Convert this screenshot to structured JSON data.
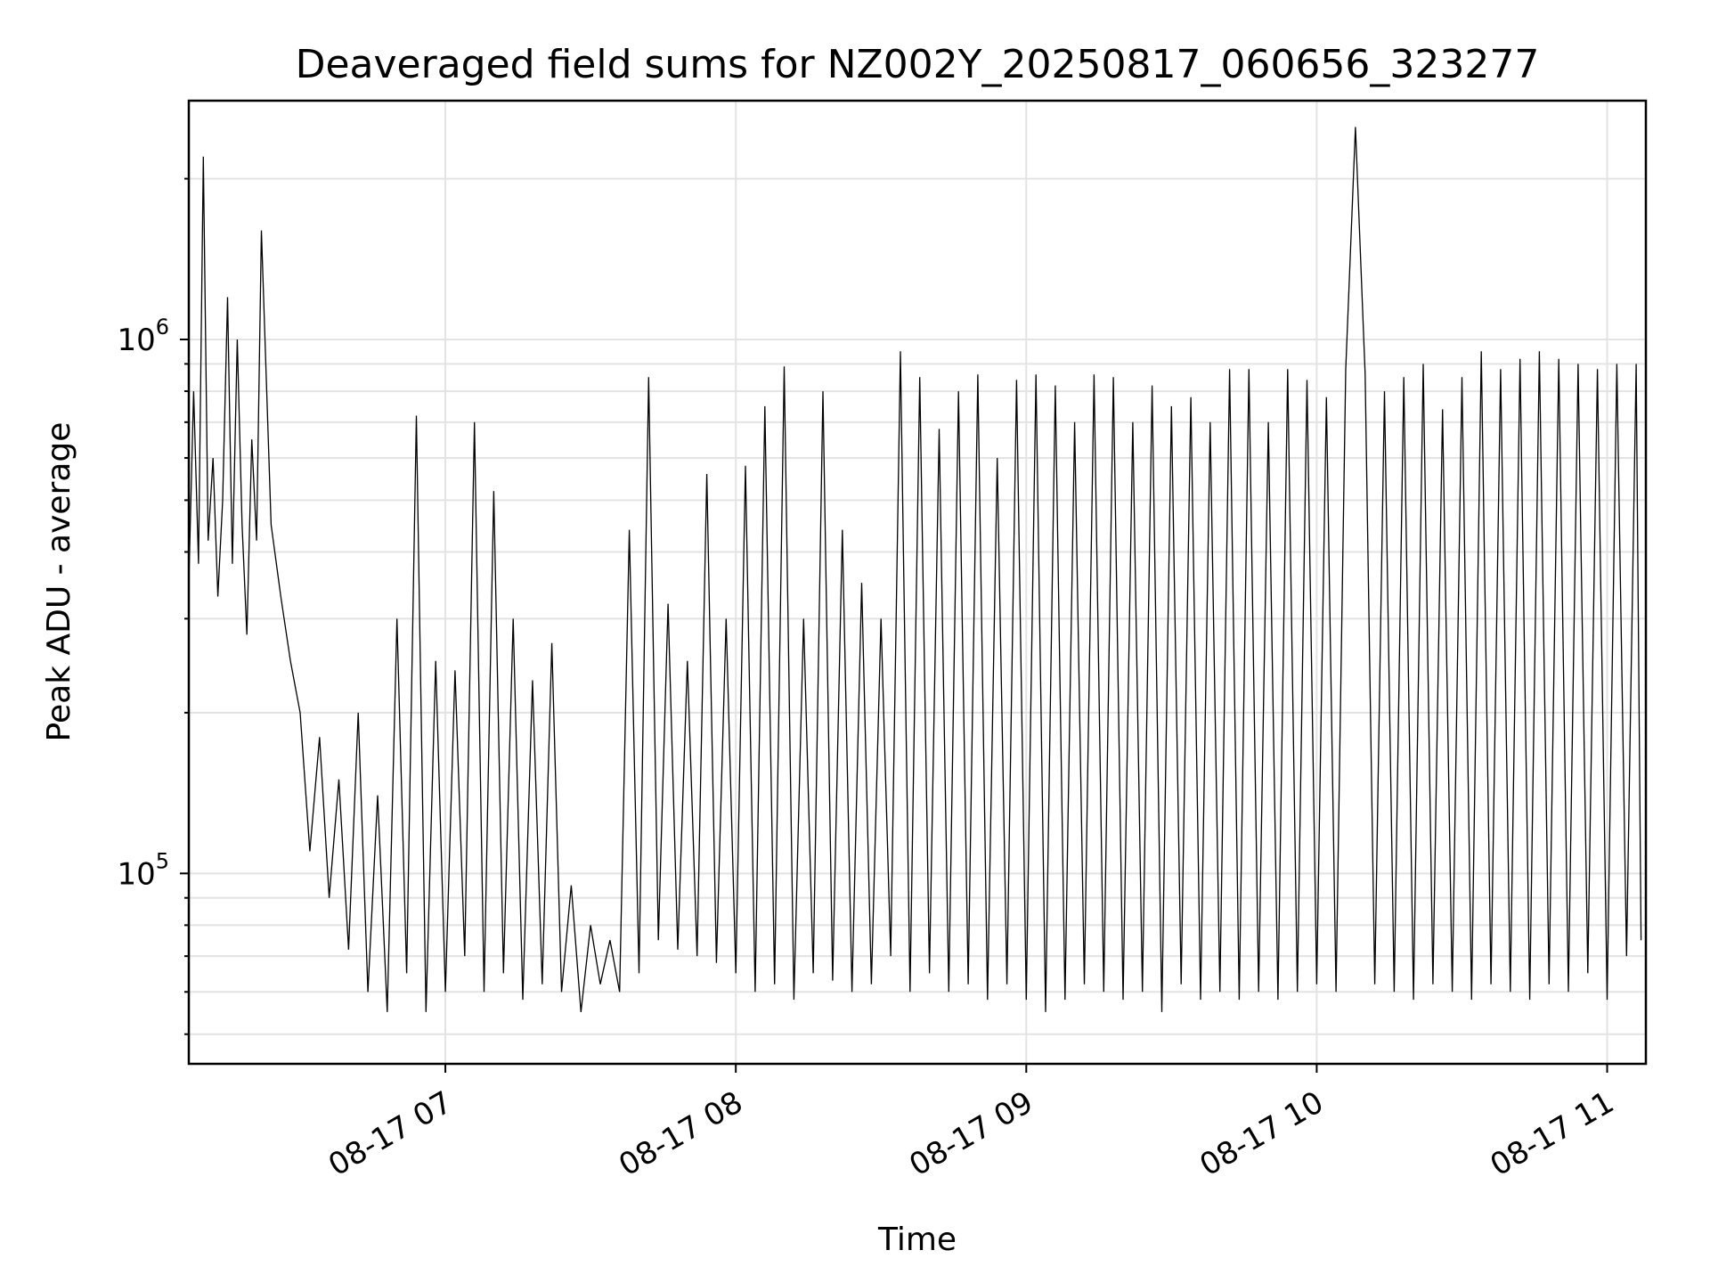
{
  "chart_data": {
    "type": "line",
    "title": "Deaveraged field sums for NZ002Y_20250817_060656_323277",
    "xlabel": "Time",
    "ylabel": "Peak ADU - average",
    "yscale": "log",
    "ylim": [
      44000,
      2800000
    ],
    "xlim": [
      "2025-08-17 06:07:00",
      "2025-08-17 11:08:00"
    ],
    "x_ticks": [
      {
        "value": "2025-08-17 07:00",
        "label": "08-17 07"
      },
      {
        "value": "2025-08-17 08:00",
        "label": "08-17 08"
      },
      {
        "value": "2025-08-17 09:00",
        "label": "08-17 09"
      },
      {
        "value": "2025-08-17 10:00",
        "label": "08-17 10"
      },
      {
        "value": "2025-08-17 11:00",
        "label": "08-17 11"
      }
    ],
    "y_major_ticks": [
      {
        "value": 100000,
        "base": "10",
        "exp": "5"
      },
      {
        "value": 1000000,
        "base": "10",
        "exp": "6"
      }
    ],
    "grid": true,
    "line_color": "#000000",
    "series": [
      {
        "x": [
          "2025-08-17 06:07",
          "2025-08-17 06:08",
          "2025-08-17 06:09",
          "2025-08-17 06:10",
          "2025-08-17 06:11",
          "2025-08-17 06:12",
          "2025-08-17 06:13",
          "2025-08-17 06:14",
          "2025-08-17 06:15",
          "2025-08-17 06:16",
          "2025-08-17 06:17",
          "2025-08-17 06:18",
          "2025-08-17 06:19",
          "2025-08-17 06:20",
          "2025-08-17 06:21",
          "2025-08-17 06:22",
          "2025-08-17 06:24",
          "2025-08-17 06:26",
          "2025-08-17 06:28",
          "2025-08-17 06:30",
          "2025-08-17 06:32",
          "2025-08-17 06:34",
          "2025-08-17 06:36",
          "2025-08-17 06:38",
          "2025-08-17 06:40",
          "2025-08-17 06:42",
          "2025-08-17 06:44",
          "2025-08-17 06:46",
          "2025-08-17 06:48",
          "2025-08-17 06:50",
          "2025-08-17 06:52",
          "2025-08-17 06:54",
          "2025-08-17 06:56",
          "2025-08-17 06:58",
          "2025-08-17 07:00",
          "2025-08-17 07:02",
          "2025-08-17 07:04",
          "2025-08-17 07:06",
          "2025-08-17 07:08",
          "2025-08-17 07:10",
          "2025-08-17 07:12",
          "2025-08-17 07:14",
          "2025-08-17 07:16",
          "2025-08-17 07:18",
          "2025-08-17 07:20",
          "2025-08-17 07:22",
          "2025-08-17 07:24",
          "2025-08-17 07:26",
          "2025-08-17 07:28",
          "2025-08-17 07:30",
          "2025-08-17 07:32",
          "2025-08-17 07:34",
          "2025-08-17 07:36",
          "2025-08-17 07:38",
          "2025-08-17 07:40",
          "2025-08-17 07:42",
          "2025-08-17 07:44",
          "2025-08-17 07:46",
          "2025-08-17 07:48",
          "2025-08-17 07:50",
          "2025-08-17 07:52",
          "2025-08-17 07:54",
          "2025-08-17 07:56",
          "2025-08-17 07:58",
          "2025-08-17 08:00",
          "2025-08-17 08:02",
          "2025-08-17 08:04",
          "2025-08-17 08:06",
          "2025-08-17 08:08",
          "2025-08-17 08:10",
          "2025-08-17 08:12",
          "2025-08-17 08:14",
          "2025-08-17 08:16",
          "2025-08-17 08:18",
          "2025-08-17 08:20",
          "2025-08-17 08:22",
          "2025-08-17 08:24",
          "2025-08-17 08:26",
          "2025-08-17 08:28",
          "2025-08-17 08:30",
          "2025-08-17 08:32",
          "2025-08-17 08:34",
          "2025-08-17 08:36",
          "2025-08-17 08:38",
          "2025-08-17 08:40",
          "2025-08-17 08:42",
          "2025-08-17 08:44",
          "2025-08-17 08:46",
          "2025-08-17 08:48",
          "2025-08-17 08:50",
          "2025-08-17 08:52",
          "2025-08-17 08:54",
          "2025-08-17 08:56",
          "2025-08-17 08:58",
          "2025-08-17 09:00",
          "2025-08-17 09:02",
          "2025-08-17 09:04",
          "2025-08-17 09:06",
          "2025-08-17 09:08",
          "2025-08-17 09:10",
          "2025-08-17 09:12",
          "2025-08-17 09:14",
          "2025-08-17 09:16",
          "2025-08-17 09:18",
          "2025-08-17 09:20",
          "2025-08-17 09:22",
          "2025-08-17 09:24",
          "2025-08-17 09:26",
          "2025-08-17 09:28",
          "2025-08-17 09:30",
          "2025-08-17 09:32",
          "2025-08-17 09:34",
          "2025-08-17 09:36",
          "2025-08-17 09:38",
          "2025-08-17 09:40",
          "2025-08-17 09:42",
          "2025-08-17 09:44",
          "2025-08-17 09:46",
          "2025-08-17 09:48",
          "2025-08-17 09:50",
          "2025-08-17 09:52",
          "2025-08-17 09:54",
          "2025-08-17 09:56",
          "2025-08-17 09:58",
          "2025-08-17 10:00",
          "2025-08-17 10:02",
          "2025-08-17 10:04",
          "2025-08-17 10:06",
          "2025-08-17 10:08",
          "2025-08-17 10:10",
          "2025-08-17 10:12",
          "2025-08-17 10:14",
          "2025-08-17 10:16",
          "2025-08-17 10:18",
          "2025-08-17 10:20",
          "2025-08-17 10:22",
          "2025-08-17 10:24",
          "2025-08-17 10:26",
          "2025-08-17 10:28",
          "2025-08-17 10:30",
          "2025-08-17 10:32",
          "2025-08-17 10:34",
          "2025-08-17 10:36",
          "2025-08-17 10:38",
          "2025-08-17 10:40",
          "2025-08-17 10:42",
          "2025-08-17 10:44",
          "2025-08-17 10:46",
          "2025-08-17 10:48",
          "2025-08-17 10:50",
          "2025-08-17 10:52",
          "2025-08-17 10:54",
          "2025-08-17 10:56",
          "2025-08-17 10:58",
          "2025-08-17 11:00",
          "2025-08-17 11:02",
          "2025-08-17 11:04",
          "2025-08-17 11:06",
          "2025-08-17 11:07"
        ],
        "y": [
          350000,
          800000,
          380000,
          2200000,
          420000,
          600000,
          330000,
          500000,
          1200000,
          380000,
          1000000,
          450000,
          280000,
          650000,
          420000,
          1600000,
          450000,
          330000,
          250000,
          200000,
          110000,
          180000,
          90000,
          150000,
          72000,
          200000,
          60000,
          140000,
          55000,
          300000,
          65000,
          720000,
          55000,
          250000,
          60000,
          240000,
          70000,
          700000,
          60000,
          520000,
          65000,
          300000,
          58000,
          230000,
          62000,
          270000,
          60000,
          95000,
          55000,
          80000,
          62000,
          75000,
          60000,
          440000,
          65000,
          850000,
          75000,
          320000,
          72000,
          250000,
          70000,
          560000,
          68000,
          300000,
          65000,
          580000,
          60000,
          750000,
          62000,
          890000,
          58000,
          300000,
          65000,
          800000,
          63000,
          440000,
          60000,
          350000,
          62000,
          300000,
          70000,
          950000,
          60000,
          850000,
          65000,
          680000,
          60000,
          800000,
          62000,
          860000,
          58000,
          600000,
          62000,
          840000,
          58000,
          860000,
          55000,
          820000,
          58000,
          700000,
          62000,
          860000,
          60000,
          850000,
          58000,
          700000,
          60000,
          820000,
          55000,
          750000,
          62000,
          780000,
          58000,
          700000,
          60000,
          880000,
          58000,
          880000,
          60000,
          700000,
          58000,
          880000,
          60000,
          840000,
          62000,
          780000,
          60000,
          880000,
          2500000,
          860000,
          62000,
          800000,
          60000,
          850000,
          58000,
          900000,
          62000,
          740000,
          60000,
          850000,
          58000,
          950000,
          62000,
          880000,
          60000,
          920000,
          58000,
          950000,
          62000,
          920000,
          60000,
          900000,
          65000,
          880000,
          58000,
          900000,
          70000,
          900000,
          75000
        ]
      }
    ]
  }
}
